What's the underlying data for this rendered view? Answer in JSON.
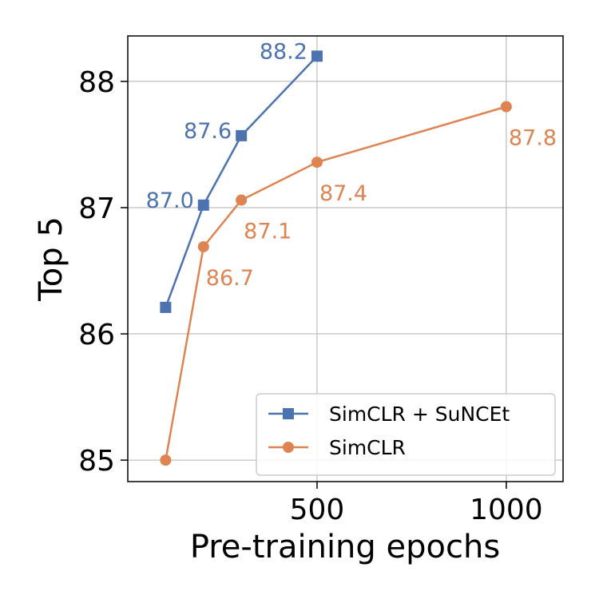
{
  "chart_data": {
    "type": "line",
    "title": "",
    "xlabel": "Pre-training epochs",
    "ylabel": "Top 5",
    "xlim": [
      0,
      1150
    ],
    "ylim": [
      84.83,
      88.36
    ],
    "xticks": [
      500,
      1000
    ],
    "xtick_labels": [
      "500",
      "1000"
    ],
    "yticks": [
      85,
      86,
      87,
      88
    ],
    "ytick_labels": [
      "85",
      "86",
      "87",
      "88"
    ],
    "grid": true,
    "legend_position": "bottom-right",
    "series": [
      {
        "name": "SimCLR + SuNCEt",
        "color": "#4c72b0",
        "marker": "square",
        "x": [
          100,
          200,
          300,
          500
        ],
        "y": [
          86.21,
          87.02,
          87.57,
          88.2
        ],
        "labels": [
          "",
          "87.0",
          "87.6",
          "88.2"
        ]
      },
      {
        "name": "SimCLR",
        "color": "#dd8452",
        "marker": "circle",
        "x": [
          100,
          200,
          300,
          500,
          1000
        ],
        "y": [
          85.0,
          86.69,
          87.06,
          87.36,
          87.8
        ],
        "labels": [
          "",
          "86.7",
          "87.1",
          "87.4",
          "87.8"
        ]
      }
    ]
  }
}
